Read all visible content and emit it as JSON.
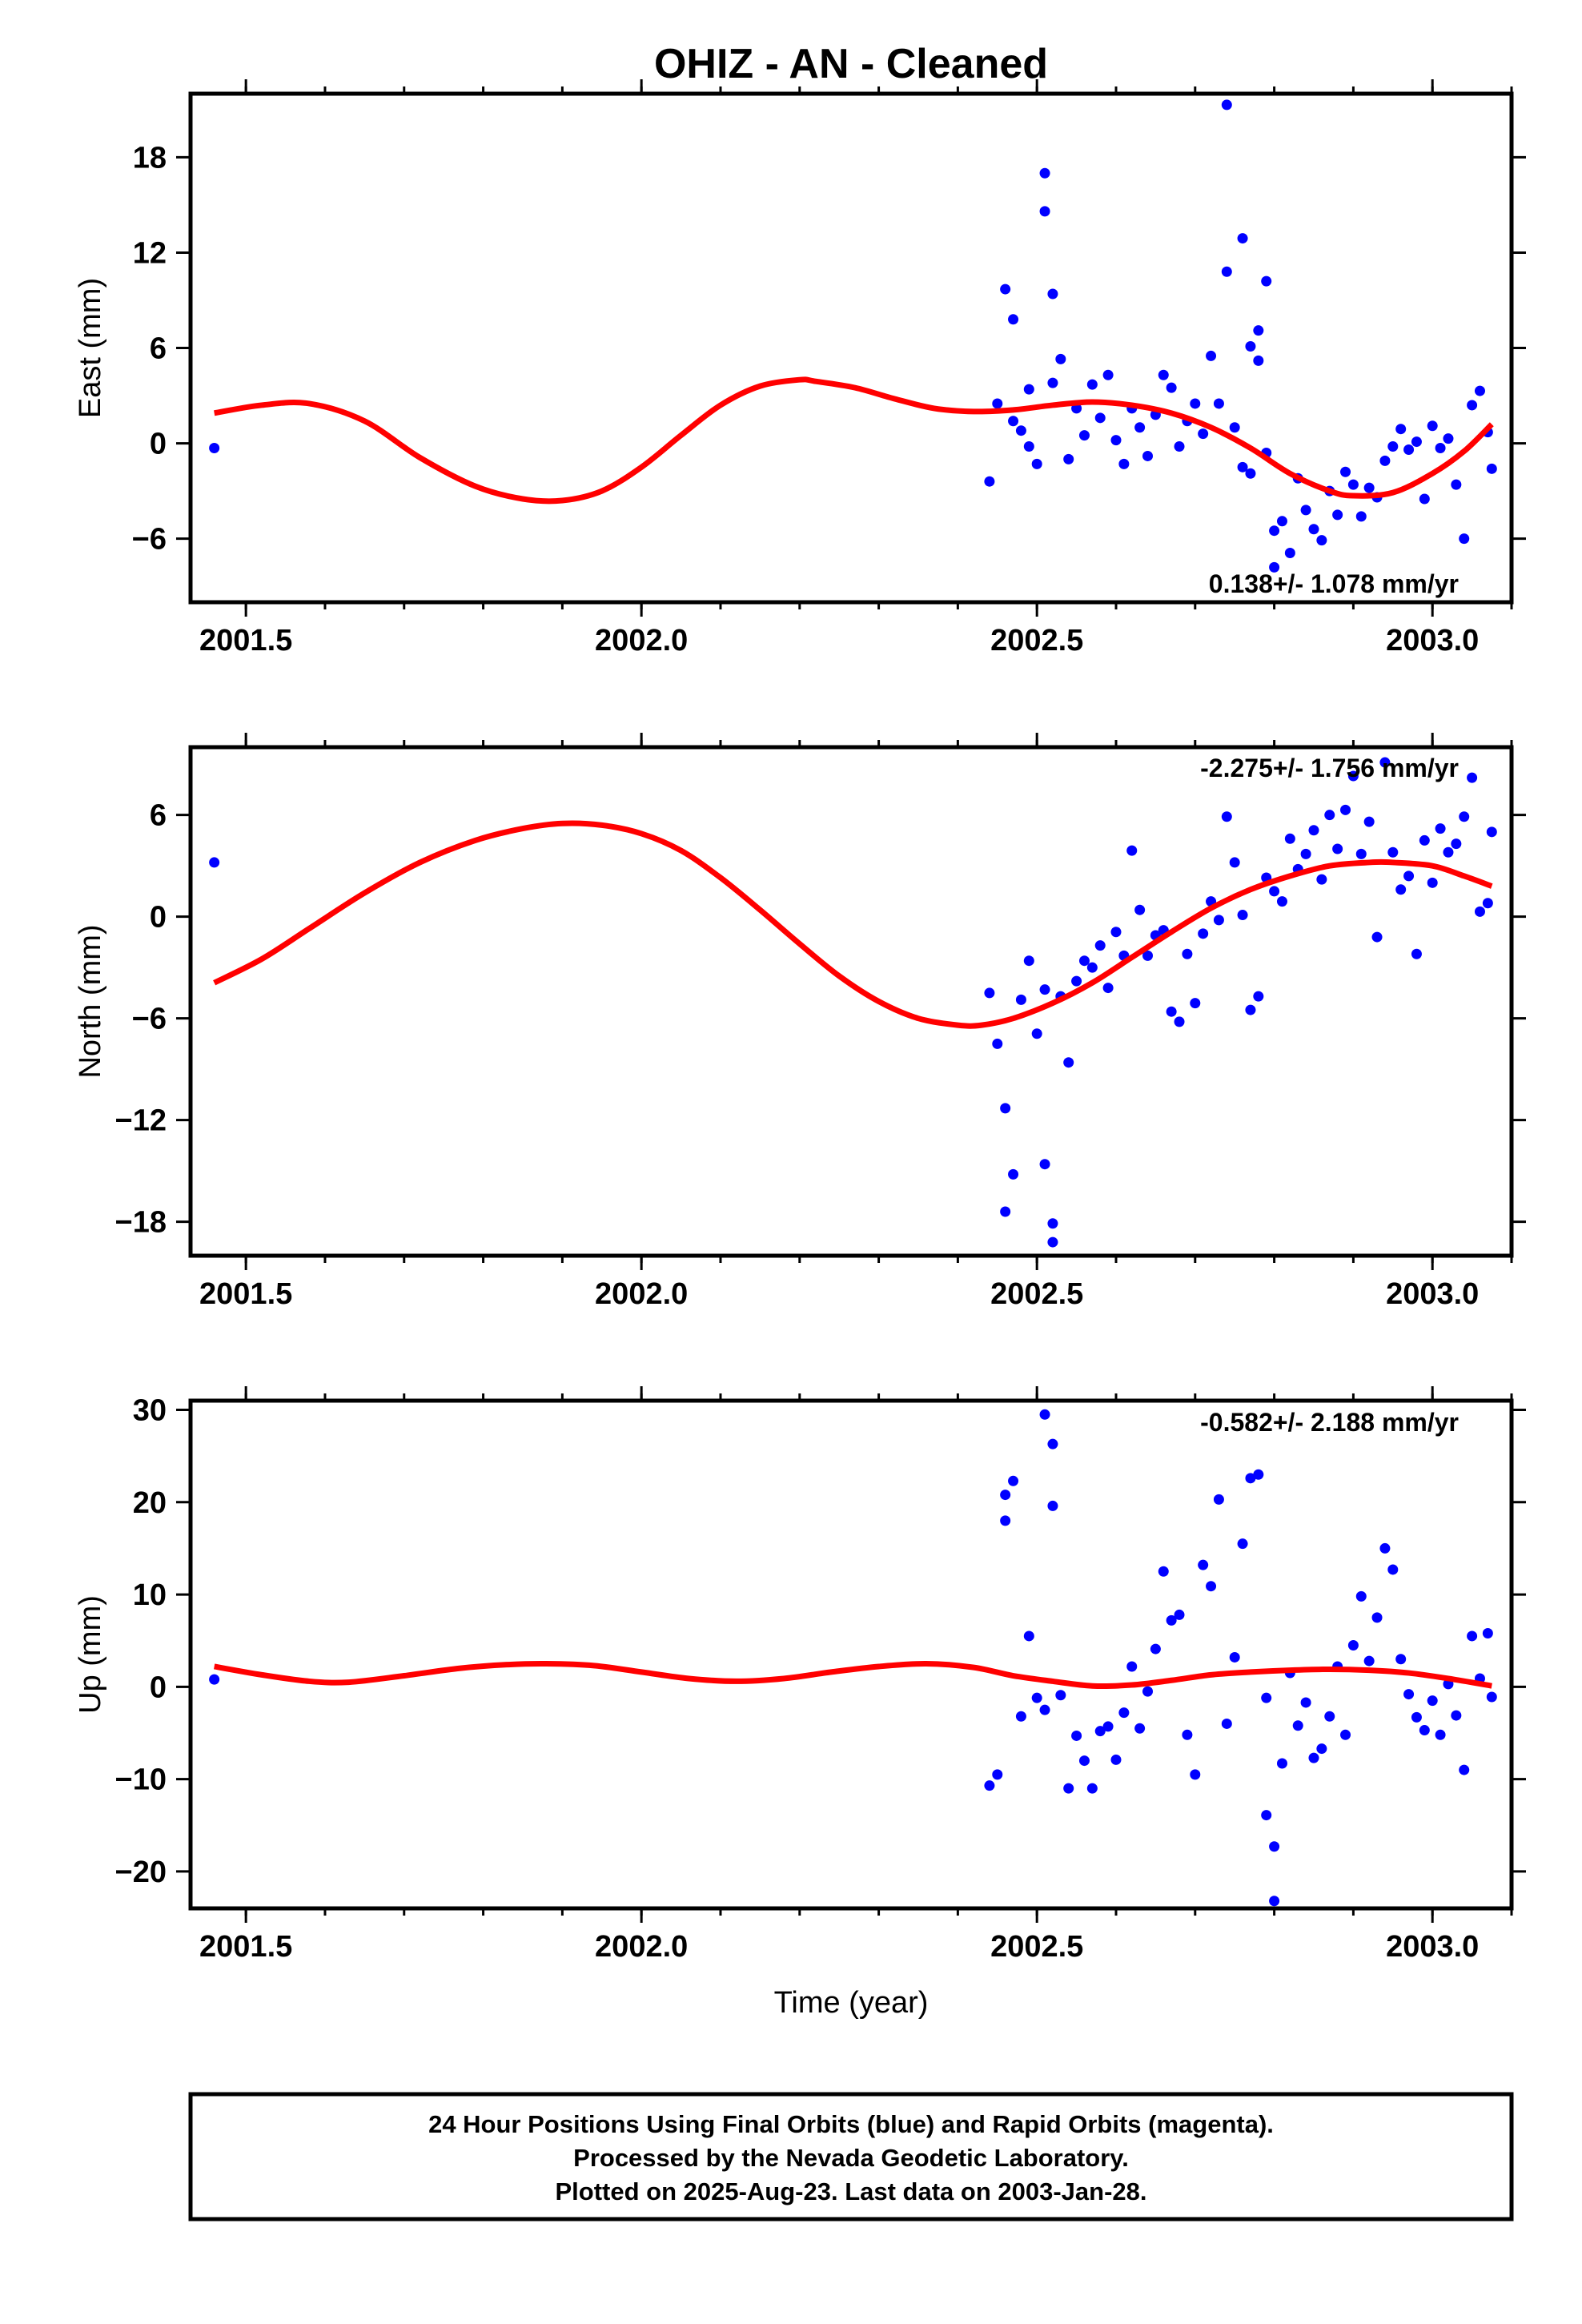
{
  "title": "OHIZ  - AN - Cleaned",
  "x_axis_label": "Time (year)",
  "footer": {
    "line1": "24 Hour Positions Using Final Orbits (blue) and Rapid Orbits (magenta).",
    "line2": "Processed by the Nevada Geodetic Laboratory.",
    "line3": "Plotted on 2025-Aug-23. Last data on 2003-Jan-28."
  },
  "colors": {
    "points": "#0000ff",
    "model": "#ff0000",
    "axes": "#000000"
  },
  "chart_data": [
    {
      "type": "scatter",
      "component": "east",
      "ylabel": "East (mm)",
      "rate_label": "0.138+/- 1.078 mm/yr",
      "xlim": [
        2001.43,
        2003.1
      ],
      "ylim": [
        -10,
        22
      ],
      "xticks": [
        2001.5,
        2002.0,
        2002.5,
        2003.0
      ],
      "xtick_labels": [
        "2001.5",
        "2002.0",
        "2002.5",
        "2003.0"
      ],
      "yticks": [
        -6,
        0,
        6,
        12,
        18
      ],
      "ytick_labels": [
        "−6",
        "0",
        "6",
        "12",
        "18"
      ],
      "model": {
        "x": [
          2001.46,
          2001.52,
          2001.58,
          2001.65,
          2001.72,
          2001.79,
          2001.85,
          2001.9,
          2001.95,
          2002.0,
          2002.05,
          2002.1,
          2002.15,
          2002.2,
          2002.22,
          2002.27,
          2002.32,
          2002.37,
          2002.42,
          2002.47,
          2002.52,
          2002.57,
          2002.62,
          2002.67,
          2002.72,
          2002.77,
          2002.82,
          2002.87,
          2002.9,
          2002.95,
          2003.0,
          2003.04,
          2003.075
        ],
        "y": [
          1.9,
          2.4,
          2.5,
          1.4,
          -0.9,
          -2.7,
          -3.5,
          -3.6,
          -3.0,
          -1.5,
          0.5,
          2.4,
          3.6,
          4.0,
          3.9,
          3.5,
          2.8,
          2.2,
          2.0,
          2.1,
          2.4,
          2.6,
          2.4,
          1.9,
          1.0,
          -0.3,
          -1.9,
          -3.0,
          -3.3,
          -3.1,
          -1.9,
          -0.5,
          1.2
        ]
      },
      "points": {
        "x": [
          2001.46,
          2002.44,
          2002.45,
          2002.46,
          2002.47,
          2002.47,
          2002.48,
          2002.49,
          2002.49,
          2002.5,
          2002.51,
          2002.51,
          2002.52,
          2002.52,
          2002.53,
          2002.54,
          2002.55,
          2002.56,
          2002.57,
          2002.58,
          2002.59,
          2002.6,
          2002.61,
          2002.62,
          2002.63,
          2002.64,
          2002.65,
          2002.66,
          2002.67,
          2002.68,
          2002.69,
          2002.7,
          2002.71,
          2002.72,
          2002.73,
          2002.74,
          2002.74,
          2002.75,
          2002.76,
          2002.76,
          2002.77,
          2002.77,
          2002.78,
          2002.78,
          2002.79,
          2002.79,
          2002.8,
          2002.8,
          2002.81,
          2002.82,
          2002.83,
          2002.84,
          2002.85,
          2002.86,
          2002.87,
          2002.88,
          2002.89,
          2002.9,
          2002.91,
          2002.92,
          2002.93,
          2002.94,
          2002.95,
          2002.96,
          2002.97,
          2002.98,
          2002.99,
          2003.0,
          2003.01,
          2003.02,
          2003.03,
          2003.04,
          2003.05,
          2003.06,
          2003.07,
          2003.075
        ],
        "y": [
          -0.3,
          -2.4,
          2.5,
          9.7,
          7.8,
          1.4,
          0.8,
          3.4,
          -0.2,
          -1.3,
          14.6,
          17.0,
          9.4,
          3.8,
          5.3,
          -1.0,
          2.2,
          0.5,
          3.7,
          1.6,
          4.3,
          0.2,
          -1.3,
          2.2,
          1.0,
          -0.8,
          1.8,
          4.3,
          3.5,
          -0.2,
          1.4,
          2.5,
          0.6,
          5.5,
          2.5,
          21.3,
          10.8,
          1.0,
          -1.5,
          12.9,
          6.1,
          -1.9,
          7.1,
          5.2,
          10.2,
          -0.6,
          -5.5,
          -7.8,
          -4.9,
          -6.9,
          -2.2,
          -4.2,
          -5.4,
          -6.1,
          -3.0,
          -4.5,
          -1.8,
          -2.6,
          -4.6,
          -2.8,
          -3.4,
          -1.1,
          -0.2,
          0.9,
          -0.4,
          0.1,
          -3.5,
          1.1,
          -0.3,
          0.3,
          -2.6,
          -6.0,
          2.4,
          3.3,
          0.7,
          -1.6
        ]
      }
    },
    {
      "type": "scatter",
      "component": "north",
      "ylabel": "North (mm)",
      "rate_label": "-2.275+/- 1.756 mm/yr",
      "xlim": [
        2001.43,
        2003.1
      ],
      "ylim": [
        -20,
        10
      ],
      "xticks": [
        2001.5,
        2002.0,
        2002.5,
        2003.0
      ],
      "xtick_labels": [
        "2001.5",
        "2002.0",
        "2002.5",
        "2003.0"
      ],
      "yticks": [
        -18,
        -12,
        -6,
        0,
        6
      ],
      "ytick_labels": [
        "−18",
        "−12",
        "−6",
        "0",
        "6"
      ],
      "model": {
        "x": [
          2001.46,
          2001.52,
          2001.58,
          2001.65,
          2001.72,
          2001.79,
          2001.85,
          2001.9,
          2001.95,
          2002.0,
          2002.05,
          2002.1,
          2002.15,
          2002.2,
          2002.25,
          2002.3,
          2002.35,
          2002.4,
          2002.43,
          2002.47,
          2002.52,
          2002.57,
          2002.62,
          2002.67,
          2002.72,
          2002.77,
          2002.82,
          2002.87,
          2002.92,
          2002.95,
          2003.0,
          2003.04,
          2003.075
        ],
        "y": [
          -3.9,
          -2.5,
          -0.7,
          1.4,
          3.2,
          4.5,
          5.2,
          5.5,
          5.4,
          4.9,
          3.9,
          2.3,
          0.4,
          -1.6,
          -3.5,
          -5.0,
          -6.0,
          -6.4,
          -6.4,
          -6.0,
          -5.1,
          -3.9,
          -2.4,
          -0.9,
          0.5,
          1.6,
          2.4,
          3.0,
          3.2,
          3.2,
          3.0,
          2.4,
          1.8
        ]
      },
      "points": {
        "x": [
          2001.46,
          2002.44,
          2002.45,
          2002.46,
          2002.46,
          2002.47,
          2002.48,
          2002.49,
          2002.5,
          2002.51,
          2002.51,
          2002.52,
          2002.52,
          2002.53,
          2002.54,
          2002.55,
          2002.56,
          2002.57,
          2002.58,
          2002.59,
          2002.6,
          2002.61,
          2002.62,
          2002.63,
          2002.64,
          2002.65,
          2002.66,
          2002.67,
          2002.68,
          2002.69,
          2002.7,
          2002.71,
          2002.72,
          2002.73,
          2002.74,
          2002.75,
          2002.76,
          2002.77,
          2002.78,
          2002.79,
          2002.8,
          2002.81,
          2002.82,
          2002.83,
          2002.84,
          2002.85,
          2002.86,
          2002.87,
          2002.88,
          2002.89,
          2002.9,
          2002.91,
          2002.92,
          2002.93,
          2002.94,
          2002.95,
          2002.96,
          2002.97,
          2002.98,
          2002.99,
          2003.0,
          2003.01,
          2003.02,
          2003.03,
          2003.04,
          2003.05,
          2003.06,
          2003.07,
          2003.075
        ],
        "y": [
          3.2,
          -4.5,
          -7.5,
          -11.3,
          -17.4,
          -15.2,
          -4.9,
          -2.6,
          -6.9,
          -4.3,
          -14.6,
          -19.2,
          -18.1,
          -4.7,
          -8.6,
          -3.8,
          -2.6,
          -3.0,
          -1.7,
          -4.2,
          -0.9,
          -2.3,
          3.9,
          0.4,
          -2.3,
          -1.1,
          -0.8,
          -5.6,
          -6.2,
          -2.2,
          -5.1,
          -1.0,
          0.9,
          -0.2,
          5.9,
          3.2,
          0.1,
          -5.5,
          -4.7,
          2.3,
          1.5,
          0.9,
          4.6,
          2.8,
          3.7,
          5.1,
          2.2,
          6.0,
          4.0,
          6.3,
          8.3,
          3.7,
          5.6,
          -1.2,
          9.1,
          3.8,
          1.6,
          2.4,
          -2.2,
          4.5,
          2.0,
          5.2,
          3.8,
          4.3,
          5.9,
          8.2,
          0.3,
          0.8,
          5.0
        ]
      }
    },
    {
      "type": "scatter",
      "component": "up",
      "ylabel": "Up (mm)",
      "rate_label": "-0.582+/- 2.188 mm/yr",
      "xlim": [
        2001.43,
        2003.1
      ],
      "ylim": [
        -24,
        31
      ],
      "xticks": [
        2001.5,
        2002.0,
        2002.5,
        2003.0
      ],
      "xtick_labels": [
        "2001.5",
        "2002.0",
        "2002.5",
        "2003.0"
      ],
      "yticks": [
        -20,
        -10,
        0,
        10,
        20,
        30
      ],
      "ytick_labels": [
        "−20",
        "−10",
        "0",
        "10",
        "20",
        "30"
      ],
      "model": {
        "x": [
          2001.46,
          2001.52,
          2001.58,
          2001.63,
          2001.7,
          2001.77,
          2001.83,
          2001.88,
          2001.94,
          2002.0,
          2002.06,
          2002.12,
          2002.18,
          2002.24,
          2002.3,
          2002.36,
          2002.42,
          2002.47,
          2002.52,
          2002.57,
          2002.62,
          2002.67,
          2002.72,
          2002.77,
          2002.82,
          2002.87,
          2002.92,
          2002.97,
          2003.02,
          2003.075
        ],
        "y": [
          2.2,
          1.3,
          0.6,
          0.5,
          1.2,
          2.0,
          2.4,
          2.5,
          2.3,
          1.6,
          0.9,
          0.6,
          0.9,
          1.6,
          2.2,
          2.5,
          2.1,
          1.2,
          0.6,
          0.1,
          0.2,
          0.7,
          1.3,
          1.6,
          1.8,
          1.9,
          1.8,
          1.5,
          0.9,
          0.1
        ]
      },
      "points": {
        "x": [
          2001.46,
          2002.44,
          2002.45,
          2002.46,
          2002.46,
          2002.47,
          2002.48,
          2002.49,
          2002.5,
          2002.51,
          2002.51,
          2002.52,
          2002.52,
          2002.53,
          2002.54,
          2002.55,
          2002.56,
          2002.57,
          2002.58,
          2002.59,
          2002.6,
          2002.61,
          2002.62,
          2002.63,
          2002.64,
          2002.65,
          2002.66,
          2002.67,
          2002.68,
          2002.69,
          2002.7,
          2002.71,
          2002.72,
          2002.73,
          2002.74,
          2002.75,
          2002.76,
          2002.77,
          2002.78,
          2002.79,
          2002.79,
          2002.8,
          2002.8,
          2002.81,
          2002.82,
          2002.83,
          2002.84,
          2002.85,
          2002.86,
          2002.87,
          2002.88,
          2002.89,
          2002.9,
          2002.91,
          2002.92,
          2002.93,
          2002.94,
          2002.95,
          2002.96,
          2002.97,
          2002.98,
          2002.99,
          2003.0,
          2003.01,
          2003.02,
          2003.03,
          2003.04,
          2003.05,
          2003.06,
          2003.07,
          2003.075
        ],
        "y": [
          0.8,
          -10.7,
          -9.5,
          20.8,
          18.0,
          22.3,
          -3.2,
          5.5,
          -1.2,
          -2.5,
          29.5,
          26.3,
          19.6,
          -0.9,
          -11.0,
          -5.3,
          -8.0,
          -11.0,
          -4.8,
          -4.3,
          -7.9,
          -2.8,
          2.2,
          -4.5,
          -0.5,
          4.1,
          12.5,
          7.2,
          7.8,
          -5.2,
          -9.5,
          13.2,
          10.9,
          20.3,
          -4.0,
          3.2,
          15.5,
          22.6,
          23.0,
          -1.2,
          -13.9,
          -17.3,
          -23.2,
          -8.3,
          1.5,
          -4.2,
          -1.7,
          -7.7,
          -6.7,
          -3.2,
          2.2,
          -5.2,
          4.5,
          9.8,
          2.8,
          7.5,
          15.0,
          12.7,
          3.0,
          -0.8,
          -3.3,
          -4.7,
          -1.5,
          -5.2,
          0.3,
          -3.1,
          -9.0,
          5.5,
          0.9,
          5.8,
          -1.1
        ]
      }
    }
  ]
}
